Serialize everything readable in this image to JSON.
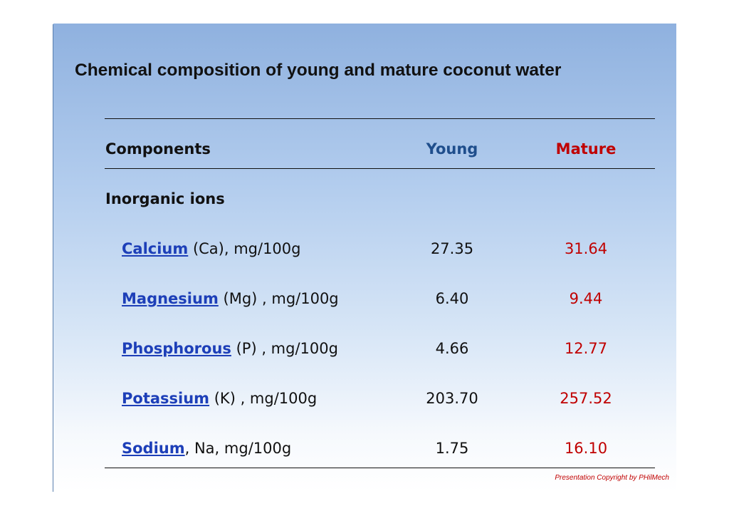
{
  "title": "Chemical composition of young and mature coconut water",
  "table": {
    "headers": {
      "components": "Components",
      "young": "Young",
      "mature": "Mature"
    },
    "group_label": "Inorganic ions",
    "rows": [
      {
        "name": "Calcium",
        "unit": " (Ca), mg/100g",
        "young": "27.35",
        "mature": "31.64"
      },
      {
        "name": "Magnesium",
        "unit": " (Mg) , mg/100g",
        "young": "6.40",
        "mature": "9.44"
      },
      {
        "name": "Phosphorous",
        "unit": " (P) , mg/100g",
        "young": "4.66",
        "mature": "12.77"
      },
      {
        "name": "Potassium",
        "unit": " (K) , mg/100g",
        "young": "203.70",
        "mature": "257.52"
      },
      {
        "name": "Sodium",
        "unit": ", Na, mg/100g",
        "young": "1.75",
        "mature": "16.10"
      }
    ]
  },
  "copyright": "Presentation Copyright by PHilMech",
  "colors": {
    "young_header": "#1f4e8c",
    "mature": "#c00000",
    "link": "#1d3fb8",
    "background_top": "#8fb1df",
    "background_bottom": "#ffffff"
  }
}
